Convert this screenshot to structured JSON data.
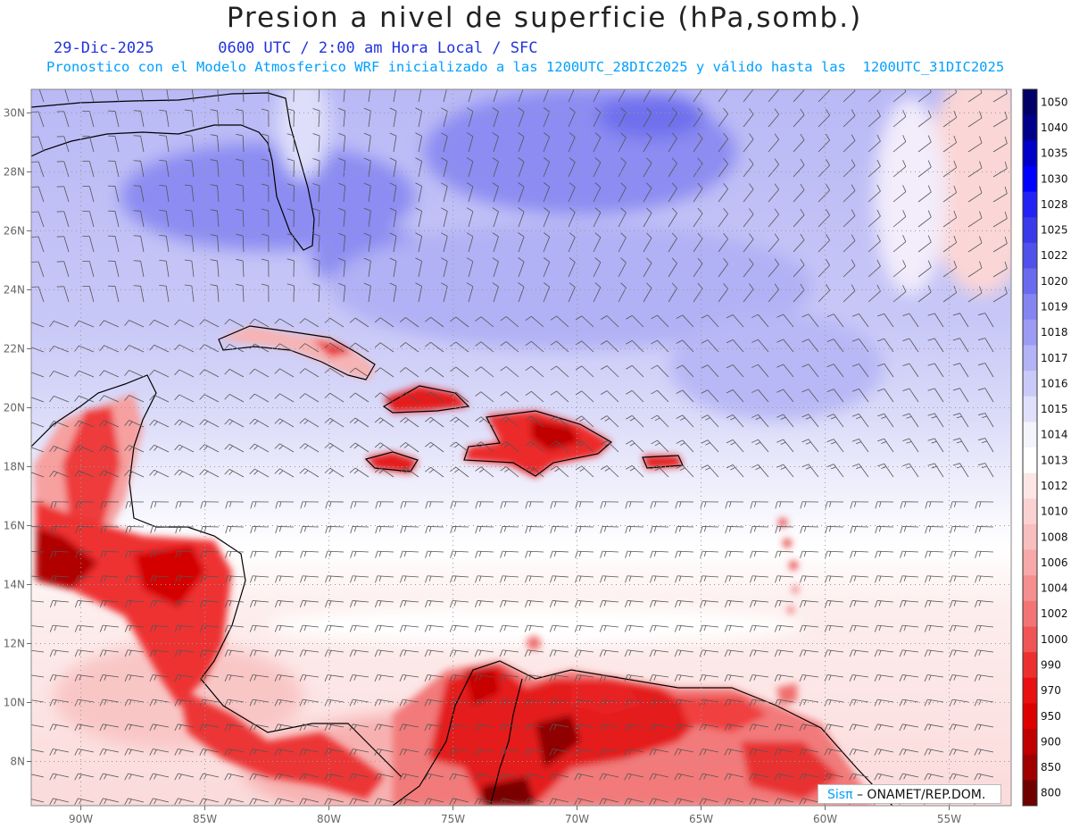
{
  "header": {
    "title": "Presion a nivel de superficie (hPa,somb.)",
    "date": "29-Dic-2025",
    "time_info": "0600 UTC / 2:00 am Hora Local / SFC",
    "model_info": "Pronostico con el Modelo Atmosferico WRF inicializado a las 1200UTC_28DIC2025 y válido hasta las  1200UTC_31DIC2025"
  },
  "map": {
    "lon_range": [
      -92,
      -52.5
    ],
    "lat_range": [
      6.5,
      30.8
    ],
    "lon_ticks": [
      {
        "v": -90,
        "label": "90W"
      },
      {
        "v": -85,
        "label": "85W"
      },
      {
        "v": -80,
        "label": "80W"
      },
      {
        "v": -75,
        "label": "75W"
      },
      {
        "v": -70,
        "label": "70W"
      },
      {
        "v": -65,
        "label": "65W"
      },
      {
        "v": -60,
        "label": "60W"
      },
      {
        "v": -55,
        "label": "55W"
      }
    ],
    "lat_ticks": [
      {
        "v": 8,
        "label": "8N"
      },
      {
        "v": 10,
        "label": "10N"
      },
      {
        "v": 12,
        "label": "12N"
      },
      {
        "v": 14,
        "label": "14N"
      },
      {
        "v": 16,
        "label": "16N"
      },
      {
        "v": 18,
        "label": "18N"
      },
      {
        "v": 20,
        "label": "20N"
      },
      {
        "v": 22,
        "label": "22N"
      },
      {
        "v": 24,
        "label": "24N"
      },
      {
        "v": 26,
        "label": "26N"
      },
      {
        "v": 28,
        "label": "28N"
      },
      {
        "v": 30,
        "label": "30N"
      }
    ],
    "grid_style": "dotted"
  },
  "colorbar": {
    "levels": [
      {
        "label": "1050",
        "color": "#000066"
      },
      {
        "label": "1040",
        "color": "#00008b"
      },
      {
        "label": "1035",
        "color": "#0000c8"
      },
      {
        "label": "1030",
        "color": "#0000ff"
      },
      {
        "label": "1028",
        "color": "#2222f4"
      },
      {
        "label": "1025",
        "color": "#3a3ae8"
      },
      {
        "label": "1022",
        "color": "#5050ea"
      },
      {
        "label": "1020",
        "color": "#6a6aee"
      },
      {
        "label": "1019",
        "color": "#8585f2"
      },
      {
        "label": "1018",
        "color": "#9c9cf4"
      },
      {
        "label": "1017",
        "color": "#b3b3f6"
      },
      {
        "label": "1016",
        "color": "#cacaf8"
      },
      {
        "label": "1015",
        "color": "#e0e0fa"
      },
      {
        "label": "1014",
        "color": "#f4f4fd"
      },
      {
        "label": "1013",
        "color": "#ffffff"
      },
      {
        "label": "1012",
        "color": "#fde6e6"
      },
      {
        "label": "1010",
        "color": "#fbd2d2"
      },
      {
        "label": "1008",
        "color": "#f9bebe"
      },
      {
        "label": "1006",
        "color": "#f7a8a8"
      },
      {
        "label": "1004",
        "color": "#f58f8f"
      },
      {
        "label": "1002",
        "color": "#f37474"
      },
      {
        "label": "1000",
        "color": "#f05555"
      },
      {
        "label": "990",
        "color": "#ec3030"
      },
      {
        "label": "970",
        "color": "#e81010"
      },
      {
        "label": "950",
        "color": "#dd0000"
      },
      {
        "label": "900",
        "color": "#c00000"
      },
      {
        "label": "850",
        "color": "#a00000"
      },
      {
        "label": "800",
        "color": "#700000"
      }
    ]
  },
  "credit": {
    "brand": "SisPI",
    "brand_symbol": "π",
    "org": "– ONAMET/REP.DOM."
  }
}
